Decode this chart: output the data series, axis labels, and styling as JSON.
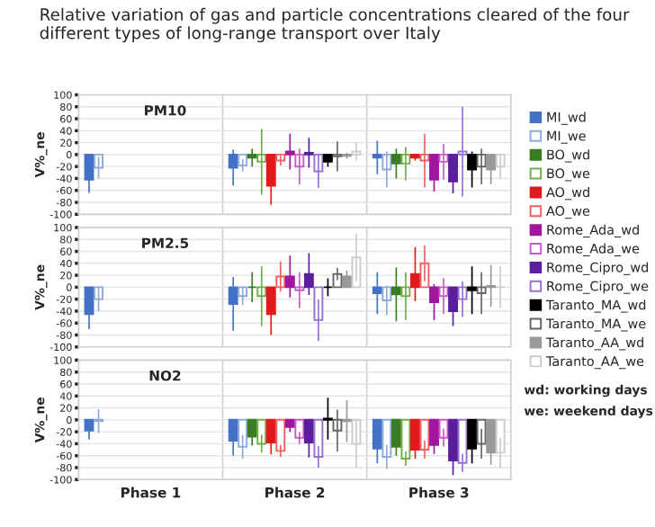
{
  "chart_data": [
    {
      "type": "bar",
      "title": "Relative variation of gas and particle concentrations cleared of the four different types of long-range transport over Italy",
      "subtitle": "PM10",
      "ylabel": "V%_ne",
      "categories": [
        null,
        null,
        null
      ],
      "ylim": [
        -100,
        100
      ],
      "yticks": [
        -100,
        -80,
        -60,
        -40,
        -20,
        0,
        20,
        40,
        60,
        80,
        100
      ],
      "grid": true,
      "tick_labels": "y",
      "legend": "right",
      "annotations": [
        "wd: working days",
        "we: weekend days"
      ],
      "series": [
        {
          "name": "MI_wd",
          "color": "#4472c4",
          "values": [
            -42,
            -22,
            -5
          ],
          "errors": [
            22,
            30,
            28
          ]
        },
        {
          "name": "MI_we",
          "color": "#8eaadb",
          "values": [
            -22,
            -18,
            -25
          ],
          "errors": [
            18,
            10,
            30
          ]
        },
        {
          "name": "BO_wd",
          "color": "#3a7d22",
          "values": [
            null,
            -5,
            -15
          ],
          "errors": [
            null,
            15,
            25
          ]
        },
        {
          "name": "BO_we",
          "color": "#70ad47",
          "values": [
            null,
            -12,
            -15
          ],
          "errors": [
            null,
            55,
            28
          ]
        },
        {
          "name": "AO_wd",
          "color": "#e31a1c",
          "values": [
            null,
            -52,
            -5
          ],
          "errors": [
            null,
            32,
            5
          ]
        },
        {
          "name": "AO_we",
          "color": "#f06060",
          "values": [
            null,
            -10,
            -10
          ],
          "errors": [
            null,
            8,
            45
          ]
        },
        {
          "name": "Rome_Ada_wd",
          "color": "#a0169e",
          "values": [
            null,
            5,
            -42
          ],
          "errors": [
            null,
            30,
            20
          ]
        },
        {
          "name": "Rome_Ada_we",
          "color": "#c85cc6",
          "values": [
            null,
            -20,
            -12
          ],
          "errors": [
            null,
            30,
            30
          ]
        },
        {
          "name": "Rome_Cipro_wd",
          "color": "#5b1f9e",
          "values": [
            null,
            3,
            -45
          ],
          "errors": [
            null,
            25,
            20
          ]
        },
        {
          "name": "Rome_Cipro_we",
          "color": "#9a6fd0",
          "values": [
            null,
            -28,
            5
          ],
          "errors": [
            null,
            28,
            75
          ]
        },
        {
          "name": "Taranto_MA_wd",
          "color": "#000000",
          "values": [
            null,
            -12,
            -25
          ],
          "errors": [
            null,
            8,
            30
          ]
        },
        {
          "name": "Taranto_MA_we",
          "color": "#666666",
          "values": [
            null,
            -3,
            -20
          ],
          "errors": [
            null,
            25,
            30
          ]
        },
        {
          "name": "Taranto_AA_wd",
          "color": "#999999",
          "values": [
            null,
            -2,
            -25
          ],
          "errors": [
            null,
            5,
            25
          ]
        },
        {
          "name": "Taranto_AA_we",
          "color": "#cccccc",
          "values": [
            null,
            5,
            -20
          ],
          "errors": [
            null,
            15,
            20
          ]
        }
      ]
    },
    {
      "type": "bar",
      "subtitle": "PM2.5",
      "ylabel": "V%_ne",
      "categories": [
        null,
        null,
        null
      ],
      "ylim": [
        -100,
        100
      ],
      "yticks": [
        -100,
        -80,
        -60,
        -40,
        -20,
        0,
        20,
        40,
        60,
        80,
        100
      ],
      "grid": true,
      "tick_labels": "y",
      "series": [
        {
          "color": "#4472c4",
          "values": [
            -45,
            -28,
            -10
          ],
          "errors": [
            25,
            45,
            35
          ]
        },
        {
          "color": "#8eaadb",
          "values": [
            -20,
            -15,
            -22
          ],
          "errors": [
            20,
            15,
            25
          ]
        },
        {
          "color": "#3a7d22",
          "values": [
            null,
            0,
            -12
          ],
          "errors": [
            null,
            25,
            45
          ]
        },
        {
          "color": "#70ad47",
          "values": [
            null,
            -15,
            -15
          ],
          "errors": [
            null,
            50,
            40
          ]
        },
        {
          "color": "#e31a1c",
          "values": [
            null,
            -45,
            22
          ],
          "errors": [
            null,
            35,
            45
          ]
        },
        {
          "color": "#f06060",
          "values": [
            null,
            18,
            40
          ],
          "errors": [
            null,
            25,
            30
          ]
        },
        {
          "color": "#a0169e",
          "values": [
            null,
            18,
            -25
          ],
          "errors": [
            null,
            35,
            30
          ]
        },
        {
          "color": "#c85cc6",
          "values": [
            null,
            -5,
            -15
          ],
          "errors": [
            null,
            30,
            30
          ]
        },
        {
          "color": "#5b1f9e",
          "values": [
            null,
            22,
            -40
          ],
          "errors": [
            null,
            35,
            25
          ]
        },
        {
          "color": "#9a6fd0",
          "values": [
            null,
            -55,
            -20
          ],
          "errors": [
            null,
            35,
            30
          ]
        },
        {
          "color": "#000000",
          "values": [
            null,
            0,
            -5
          ],
          "errors": [
            null,
            15,
            40
          ]
        },
        {
          "color": "#666666",
          "values": [
            null,
            22,
            -10
          ],
          "errors": [
            null,
            10,
            35
          ]
        },
        {
          "color": "#999999",
          "values": [
            null,
            18,
            2
          ],
          "errors": [
            null,
            10,
            35
          ]
        },
        {
          "color": "#cccccc",
          "values": [
            null,
            50,
            0
          ],
          "errors": [
            null,
            40,
            35
          ]
        }
      ]
    },
    {
      "type": "bar",
      "subtitle": "NO2",
      "ylabel": "V%_ne",
      "categories": [
        "Phase 1",
        "Phase 2",
        "Phase 3"
      ],
      "ylim": [
        -100,
        100
      ],
      "yticks": [
        -100,
        -80,
        -60,
        -40,
        -20,
        0,
        20,
        40,
        60,
        80,
        100
      ],
      "grid": true,
      "series": [
        {
          "color": "#4472c4",
          "values": [
            -18,
            -35,
            -48
          ],
          "errors": [
            15,
            25,
            25
          ]
        },
        {
          "color": "#8eaadb",
          "values": [
            -2,
            -45,
            -62
          ],
          "errors": [
            20,
            20,
            20
          ]
        },
        {
          "color": "#3a7d22",
          "values": [
            null,
            -28,
            -45
          ],
          "errors": [
            null,
            15,
            15
          ]
        },
        {
          "color": "#70ad47",
          "values": [
            null,
            -40,
            -65
          ],
          "errors": [
            null,
            15,
            12
          ]
        },
        {
          "color": "#e31a1c",
          "values": [
            null,
            -38,
            -50
          ],
          "errors": [
            null,
            20,
            15
          ]
        },
        {
          "color": "#f06060",
          "values": [
            null,
            -52,
            -50
          ],
          "errors": [
            null,
            10,
            15
          ]
        },
        {
          "color": "#a0169e",
          "values": [
            null,
            -12,
            -42
          ],
          "errors": [
            null,
            8,
            15
          ]
        },
        {
          "color": "#c85cc6",
          "values": [
            null,
            -30,
            -30
          ],
          "errors": [
            null,
            10,
            15
          ]
        },
        {
          "color": "#5b1f9e",
          "values": [
            null,
            -38,
            -68
          ],
          "errors": [
            null,
            25,
            25
          ]
        },
        {
          "color": "#9a6fd0",
          "values": [
            null,
            -62,
            -72
          ],
          "errors": [
            null,
            18,
            15
          ]
        },
        {
          "color": "#000000",
          "values": [
            null,
            2,
            -48
          ],
          "errors": [
            null,
            35,
            25
          ]
        },
        {
          "color": "#666666",
          "values": [
            null,
            -18,
            -40
          ],
          "errors": [
            null,
            35,
            25
          ]
        },
        {
          "color": "#999999",
          "values": [
            null,
            -2,
            -55
          ],
          "errors": [
            null,
            35,
            20
          ]
        },
        {
          "color": "#cccccc",
          "values": [
            null,
            -40,
            -55
          ],
          "errors": [
            null,
            40,
            25
          ]
        }
      ]
    }
  ]
}
